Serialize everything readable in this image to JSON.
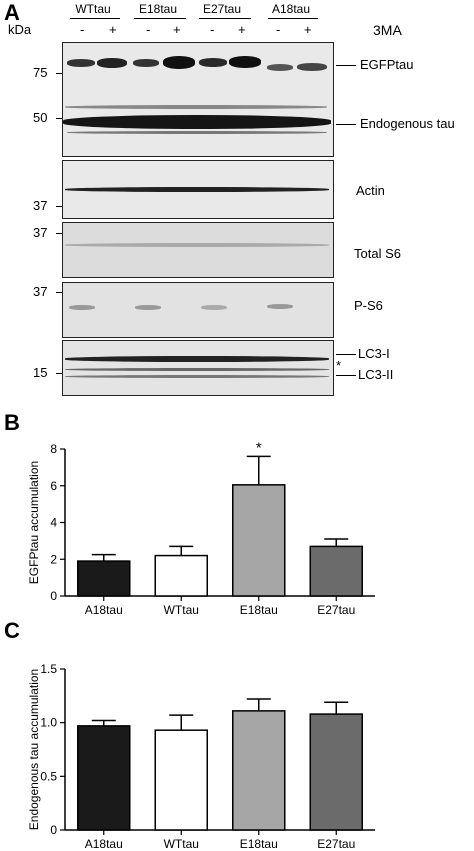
{
  "panel_a": {
    "letter": "A",
    "kda_label": "kDa",
    "treatment_label": "3MA",
    "groups": [
      {
        "name": "WTtau",
        "lanes": [
          "-",
          "+"
        ]
      },
      {
        "name": "E18tau",
        "lanes": [
          "-",
          "+"
        ]
      },
      {
        "name": "E27tau",
        "lanes": [
          "-",
          "+"
        ]
      },
      {
        "name": "A18tau",
        "lanes": [
          "-",
          "+"
        ]
      }
    ],
    "blots": [
      {
        "label": "EGFPtau",
        "label2": "Endogenous tau",
        "markers": [
          "75",
          "50"
        ]
      },
      {
        "label": "Actin",
        "markers": [
          "37"
        ]
      },
      {
        "label": "Total S6",
        "markers": [
          "37"
        ]
      },
      {
        "label": "P-S6",
        "markers": [
          "37"
        ]
      },
      {
        "label": "LC3-I",
        "label2": "LC3-II",
        "asterisk": "*",
        "markers": [
          "15"
        ]
      }
    ]
  },
  "chart_data": [
    {
      "panel": "B",
      "type": "bar",
      "categories": [
        "A18tau",
        "WTtau",
        "E18tau",
        "E27tau"
      ],
      "values": [
        1.9,
        2.2,
        6.05,
        2.7
      ],
      "errors": [
        0.35,
        0.5,
        1.55,
        0.4
      ],
      "bar_colors": [
        "#1a1a1a",
        "#ffffff",
        "#a6a6a6",
        "#6b6b6b"
      ],
      "significance": [
        "",
        "",
        "*",
        ""
      ],
      "xlabel": "",
      "ylabel": "EGFPtau accumulation",
      "ylim": [
        0,
        8
      ],
      "yticks": [
        "0",
        "2",
        "4",
        "6",
        "8"
      ]
    },
    {
      "panel": "C",
      "type": "bar",
      "categories": [
        "A18tau",
        "WTtau",
        "E18tau",
        "E27tau"
      ],
      "values": [
        0.97,
        0.93,
        1.11,
        1.08
      ],
      "errors": [
        0.05,
        0.14,
        0.11,
        0.11
      ],
      "bar_colors": [
        "#1a1a1a",
        "#ffffff",
        "#a6a6a6",
        "#6b6b6b"
      ],
      "significance": [
        "",
        "",
        "",
        ""
      ],
      "xlabel": "",
      "ylabel": "Endogenous tau accumulation",
      "ylim": [
        0,
        1.5
      ],
      "yticks": [
        "0",
        "0.5",
        "1.0",
        "1.5"
      ]
    }
  ]
}
